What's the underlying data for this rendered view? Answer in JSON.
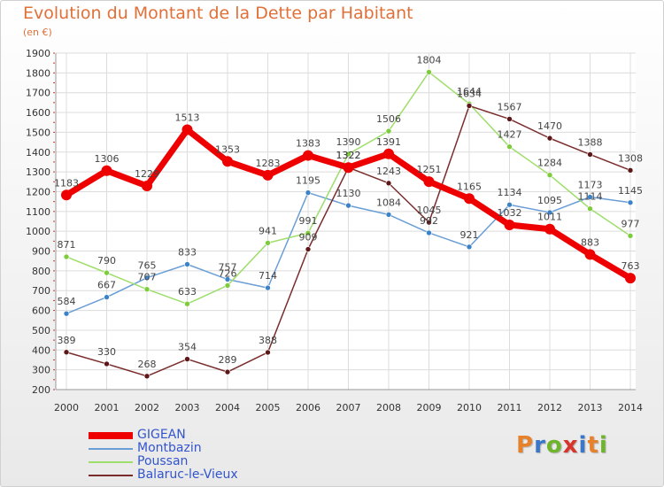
{
  "title": "Evolution du Montant de la Dette par Habitant",
  "subtitle": "(en €)",
  "logo": {
    "text": "Proxiti",
    "letter_colors": [
      "#e8822a",
      "#3a77c8",
      "#6fb52c",
      "#d9342b",
      "#3a77c8",
      "#e8822a",
      "#6fb52c"
    ]
  },
  "chart_data": {
    "type": "line",
    "x": [
      "2000",
      "2001",
      "2002",
      "2003",
      "2004",
      "2005",
      "2006",
      "2007",
      "2008",
      "2009",
      "2010",
      "2011",
      "2012",
      "2013",
      "2014"
    ],
    "ylim": [
      200,
      1900
    ],
    "yticks": [
      200,
      300,
      400,
      500,
      600,
      700,
      800,
      900,
      1000,
      1100,
      1200,
      1300,
      1400,
      1500,
      1600,
      1700,
      1800,
      1900
    ],
    "grid": true,
    "legend_position": "bottom-left",
    "series": [
      {
        "name": "GIGEAN",
        "color": "#ee0000",
        "marker": "#ee0000",
        "width": 7,
        "radius": 6,
        "values": [
          1183,
          1306,
          1229,
          1513,
          1353,
          1283,
          1383,
          1322,
          1391,
          1251,
          1165,
          1032,
          1011,
          883,
          763
        ]
      },
      {
        "name": "Montbazin",
        "color": "#6a9ed6",
        "marker": "#3c82c8",
        "width": 1.5,
        "radius": 3,
        "values": [
          584,
          667,
          765,
          833,
          757,
          714,
          1195,
          1130,
          1084,
          992,
          921,
          1134,
          1095,
          1173,
          1145
        ]
      },
      {
        "name": "Poussan",
        "color": "#9ede6a",
        "marker": "#7ccc3c",
        "width": 1.5,
        "radius": 3,
        "values": [
          871,
          790,
          707,
          633,
          726,
          941,
          991,
          1390,
          1506,
          1804,
          1644,
          1427,
          1284,
          1114,
          977
        ]
      },
      {
        "name": "Balaruc-le-Vieux",
        "color": "#7a2c2c",
        "marker": "#5c1818",
        "width": 1.5,
        "radius": 3,
        "values": [
          389,
          330,
          268,
          354,
          289,
          388,
          909,
          1322,
          1243,
          1045,
          1634,
          1567,
          1470,
          1388,
          1308
        ]
      }
    ]
  }
}
